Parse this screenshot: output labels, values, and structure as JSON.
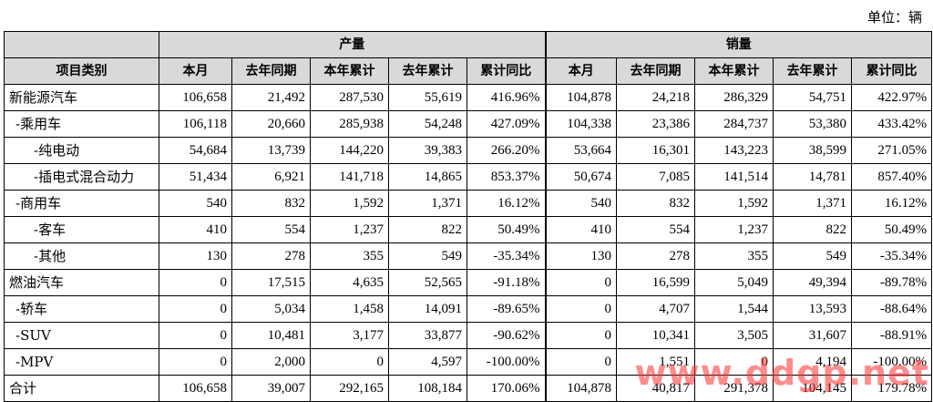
{
  "unit_label": "单位：辆",
  "group_headers": {
    "blank": "",
    "production": "产量",
    "sales": "销量"
  },
  "columns": [
    "项目类别",
    "本月",
    "去年同期",
    "本年累计",
    "去年累计",
    "累计同比",
    "本月",
    "去年同期",
    "本年累计",
    "去年累计",
    "累计同比"
  ],
  "rows": [
    {
      "label": "新能源汽车",
      "indent": 0,
      "values": [
        "106,658",
        "21,492",
        "287,530",
        "55,619",
        "416.96%",
        "104,878",
        "24,218",
        "286,329",
        "54,751",
        "422.97%"
      ]
    },
    {
      "label": "-乘用车",
      "indent": 1,
      "values": [
        "106,118",
        "20,660",
        "285,938",
        "54,248",
        "427.09%",
        "104,338",
        "23,386",
        "284,737",
        "53,380",
        "433.42%"
      ]
    },
    {
      "label": "-纯电动",
      "indent": 2,
      "values": [
        "54,684",
        "13,739",
        "144,220",
        "39,383",
        "266.20%",
        "53,664",
        "16,301",
        "143,223",
        "38,599",
        "271.05%"
      ]
    },
    {
      "label": "-插电式混合动力",
      "indent": 2,
      "values": [
        "51,434",
        "6,921",
        "141,718",
        "14,865",
        "853.37%",
        "50,674",
        "7,085",
        "141,514",
        "14,781",
        "857.40%"
      ]
    },
    {
      "label": "-商用车",
      "indent": 1,
      "values": [
        "540",
        "832",
        "1,592",
        "1,371",
        "16.12%",
        "540",
        "832",
        "1,592",
        "1,371",
        "16.12%"
      ]
    },
    {
      "label": "-客车",
      "indent": 2,
      "values": [
        "410",
        "554",
        "1,237",
        "822",
        "50.49%",
        "410",
        "554",
        "1,237",
        "822",
        "50.49%"
      ]
    },
    {
      "label": "-其他",
      "indent": 2,
      "values": [
        "130",
        "278",
        "355",
        "549",
        "-35.34%",
        "130",
        "278",
        "355",
        "549",
        "-35.34%"
      ]
    },
    {
      "label": "燃油汽车",
      "indent": 0,
      "values": [
        "0",
        "17,515",
        "4,635",
        "52,565",
        "-91.18%",
        "0",
        "16,599",
        "5,049",
        "49,394",
        "-89.78%"
      ]
    },
    {
      "label": "-轿车",
      "indent": 1,
      "values": [
        "0",
        "5,034",
        "1,458",
        "14,091",
        "-89.65%",
        "0",
        "4,707",
        "1,544",
        "13,593",
        "-88.64%"
      ]
    },
    {
      "label": "-SUV",
      "indent": 1,
      "values": [
        "0",
        "10,481",
        "3,177",
        "33,877",
        "-90.62%",
        "0",
        "10,341",
        "3,505",
        "31,607",
        "-88.91%"
      ]
    },
    {
      "label": "-MPV",
      "indent": 1,
      "values": [
        "0",
        "2,000",
        "0",
        "4,597",
        "-100.00%",
        "0",
        "1,551",
        "0",
        "4,194",
        "-100.00%"
      ]
    },
    {
      "label": "合计",
      "indent": 0,
      "values": [
        "106,658",
        "39,007",
        "292,165",
        "108,184",
        "170.06%",
        "104,878",
        "40,817",
        "291,378",
        "104,145",
        "179.78%"
      ]
    }
  ],
  "watermark": "www.ddgp.net"
}
